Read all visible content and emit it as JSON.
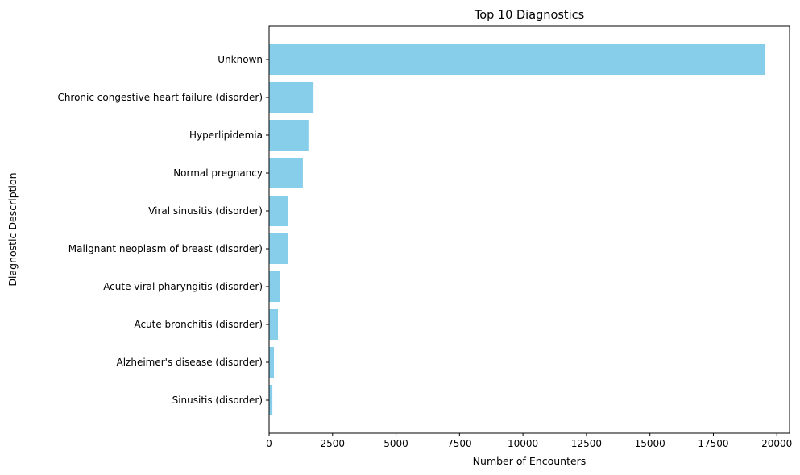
{
  "chart_data": {
    "type": "bar",
    "orientation": "horizontal",
    "title": "Top 10 Diagnostics",
    "xlabel": "Number of Encounters",
    "ylabel": "Diagnostic Description",
    "categories": [
      "Unknown",
      "Chronic congestive heart failure (disorder)",
      "Hyperlipidemia",
      "Normal pregnancy",
      "Viral sinusitis (disorder)",
      "Malignant neoplasm of breast (disorder)",
      "Acute viral pharyngitis (disorder)",
      "Acute bronchitis (disorder)",
      "Alzheimer's disease (disorder)",
      "Sinusitis (disorder)"
    ],
    "values": [
      19550,
      1750,
      1550,
      1330,
      740,
      740,
      420,
      350,
      190,
      130
    ],
    "xlim": [
      0,
      20500
    ],
    "xticks": [
      0,
      2500,
      5000,
      7500,
      10000,
      12500,
      15000,
      17500,
      20000
    ],
    "xtick_labels": [
      "0",
      "2500",
      "5000",
      "7500",
      "10000",
      "12500",
      "15000",
      "17500",
      "20000"
    ],
    "bar_color": "#87ceeb",
    "grid": false,
    "legend": "none"
  }
}
